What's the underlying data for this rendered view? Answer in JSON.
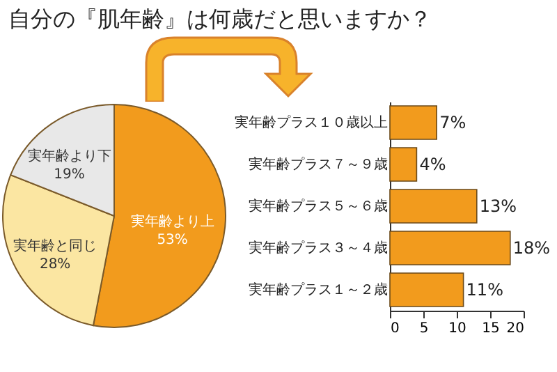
{
  "chart_data": [
    {
      "type": "pie",
      "title": "自分の『肌年齢』は何歳だと思いますか？",
      "categories": [
        "実年齢より上",
        "実年齢と同じ",
        "実年齢より下"
      ],
      "values": [
        53,
        28,
        19
      ],
      "colors": [
        "#f29b1d",
        "#fbe6a2",
        "#e8e8e8"
      ],
      "value_labels": [
        "53%",
        "28%",
        "19%"
      ]
    },
    {
      "type": "bar",
      "orientation": "horizontal",
      "categories": [
        "実年齢プラス１０歳以上",
        "実年齢プラス７～９歳",
        "実年齢プラス５～６歳",
        "実年齢プラス３～４歳",
        "実年齢プラス１～２歳"
      ],
      "values": [
        7,
        4,
        13,
        18,
        11
      ],
      "color": "#f29b1d",
      "value_labels": [
        "7%",
        "4%",
        "13%",
        "18%",
        "11%"
      ],
      "xlim": [
        0,
        20
      ],
      "xticks": [
        0,
        5,
        10,
        15,
        20
      ]
    }
  ]
}
